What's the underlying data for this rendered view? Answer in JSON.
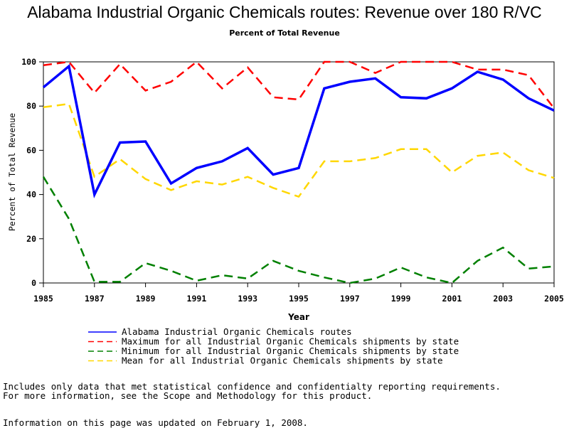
{
  "chart_data": {
    "type": "line",
    "title": "Alabama Industrial Organic Chemicals routes: Revenue over 180 R/VC",
    "subtitle": "Percent of Total Revenue",
    "xlabel": "Year",
    "ylabel": "Percent of Total Revenue",
    "xlim": [
      1985,
      2005
    ],
    "ylim": [
      0,
      100
    ],
    "x_ticks": [
      1985,
      1987,
      1989,
      1991,
      1993,
      1995,
      1997,
      1999,
      2001,
      2003,
      2005
    ],
    "y_ticks": [
      0,
      20,
      40,
      60,
      80,
      100
    ],
    "grid": false,
    "legend_position": "bottom",
    "x": [
      1985,
      1986,
      1987,
      1988,
      1989,
      1990,
      1991,
      1992,
      1993,
      1994,
      1995,
      1996,
      1997,
      1998,
      1999,
      2000,
      2001,
      2002,
      2003,
      2004,
      2005
    ],
    "series": [
      {
        "name": "Alabama Industrial Organic Chemicals routes",
        "color": "#0000ff",
        "style": "solid",
        "values": [
          88.5,
          98,
          40,
          63.5,
          64,
          45,
          52,
          55,
          61,
          49,
          52,
          88,
          91,
          92.5,
          84,
          83.5,
          88,
          95.5,
          92,
          83.5,
          78
        ]
      },
      {
        "name": "Maximum for all Industrial Organic Chemicals shipments by state",
        "color": "#ff0000",
        "style": "dashed",
        "values": [
          98.5,
          100,
          86,
          99,
          87,
          91,
          100,
          88,
          97.5,
          84,
          83,
          100,
          100,
          95,
          100,
          100,
          100,
          96.5,
          96.5,
          94,
          79
        ]
      },
      {
        "name": "Minimum for all Industrial Organic Chemicals shipments by state",
        "color": "#008000",
        "style": "dashed",
        "values": [
          48,
          29,
          0.5,
          0.5,
          9,
          5.5,
          1,
          3.5,
          2,
          10,
          5.5,
          2.5,
          0,
          2,
          7,
          2.5,
          0,
          10,
          16,
          6.5,
          7.5
        ]
      },
      {
        "name": "Mean for all Industrial Organic Chemicals shipments by state",
        "color": "#ffd700",
        "style": "dashed",
        "values": [
          79.5,
          81,
          48,
          56,
          47,
          42,
          46,
          44.5,
          48,
          43,
          39,
          55,
          55,
          56.5,
          60.5,
          60.5,
          50,
          57.5,
          59,
          51,
          47.5
        ]
      }
    ]
  },
  "notes": {
    "line1": "Includes only data that met statistical confidence and confidentialty reporting requirements.",
    "line2": "For more information, see the Scope and Methodology for this product.",
    "updated": "Information on this page was updated on February 1, 2008."
  }
}
